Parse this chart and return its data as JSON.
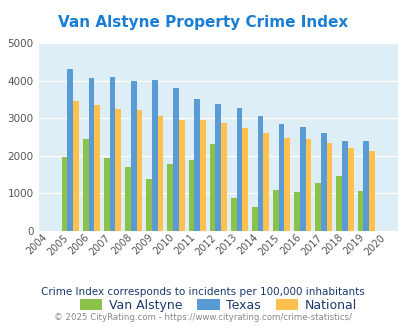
{
  "title": "Van Alstyne Property Crime Index",
  "years": [
    2004,
    2005,
    2006,
    2007,
    2008,
    2009,
    2010,
    2011,
    2012,
    2013,
    2014,
    2015,
    2016,
    2017,
    2018,
    2019,
    2020
  ],
  "van_alstyne": [
    null,
    1975,
    2450,
    1950,
    1700,
    1375,
    1775,
    1900,
    2300,
    875,
    650,
    1100,
    1025,
    1275,
    1450,
    1075,
    null
  ],
  "texas": [
    null,
    4300,
    4075,
    4100,
    4000,
    4025,
    3800,
    3500,
    3375,
    3275,
    3050,
    2850,
    2775,
    2600,
    2400,
    2400,
    null
  ],
  "national": [
    null,
    3450,
    3350,
    3250,
    3225,
    3050,
    2950,
    2950,
    2875,
    2750,
    2600,
    2475,
    2450,
    2350,
    2200,
    2125,
    null
  ],
  "van_alstyne_color": "#8bc34a",
  "texas_color": "#5b9bd5",
  "national_color": "#ffc04d",
  "plot_bg_color": "#ddeef6",
  "ylim": [
    0,
    5000
  ],
  "yticks": [
    0,
    1000,
    2000,
    3000,
    4000,
    5000
  ],
  "subtitle": "Crime Index corresponds to incidents per 100,000 inhabitants",
  "footer": "© 2025 CityRating.com - https://www.cityrating.com/crime-statistics/",
  "title_color": "#1a7fd4",
  "subtitle_color": "#1a3a6a",
  "footer_color": "#888888",
  "legend_label_color": "#1a3a6a",
  "bar_width": 0.27
}
